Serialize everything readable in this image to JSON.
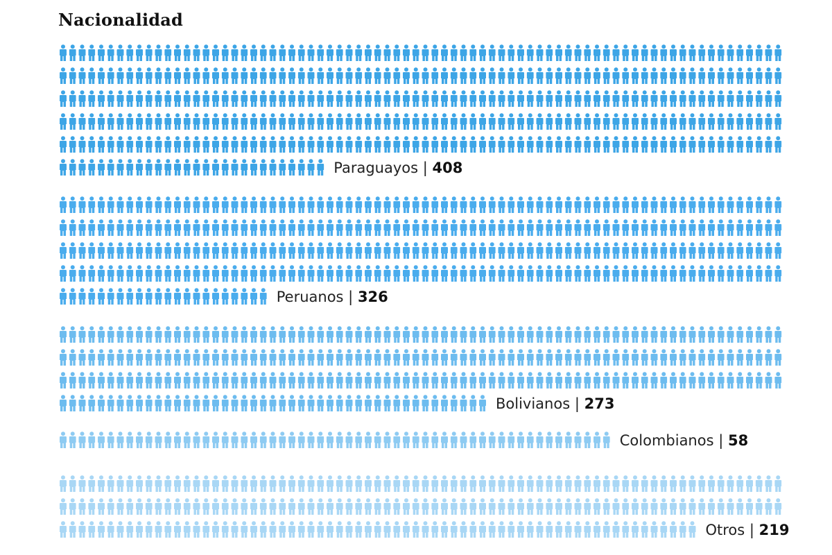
{
  "chart_data": {
    "type": "pictogram",
    "title": "Nacionalidad",
    "unit_icon": "person-icon",
    "groups": [
      {
        "name": "Paraguayos",
        "value": 408,
        "color": "#3da5e6"
      },
      {
        "name": "Peruanos",
        "value": 326,
        "color": "#4aaced"
      },
      {
        "name": "Bolivianos",
        "value": 273,
        "color": "#6dbcef"
      },
      {
        "name": "Colombianos",
        "value": 58,
        "color": "#8ecbf2"
      },
      {
        "name": "Otros",
        "value": 219,
        "color": "#a9d7f5"
      }
    ],
    "separator": "|"
  }
}
